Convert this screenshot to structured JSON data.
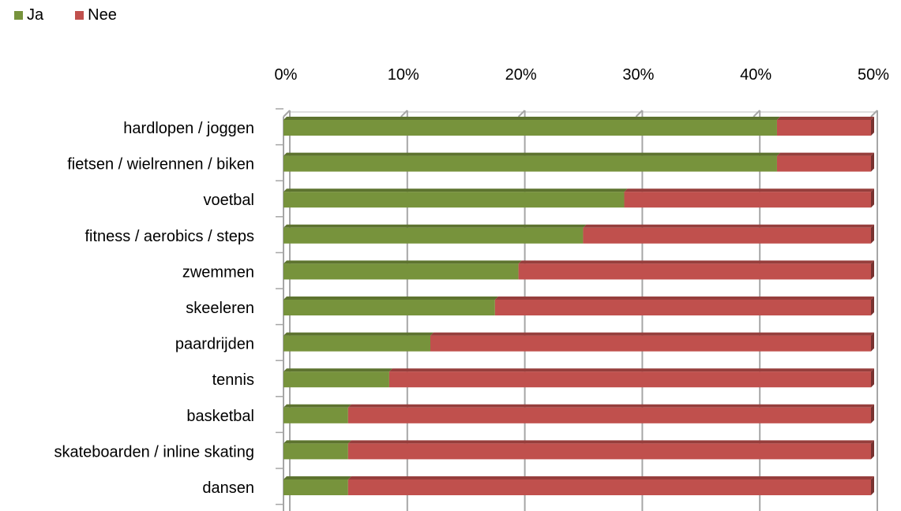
{
  "chart_data": {
    "type": "bar",
    "orientation": "horizontal",
    "stacked": true,
    "categories": [
      "hardlopen / joggen",
      "fietsen / wielrennen / biken",
      "voetbal",
      "fitness / aerobics / steps",
      "zwemmen",
      "skeeleren",
      "paardrijden",
      "tennis",
      "basketbal",
      "skateboarden / inline skating",
      "dansen"
    ],
    "series": [
      {
        "name": "Ja",
        "color": "#77933C",
        "values": [
          42,
          42,
          29,
          25.5,
          20,
          18,
          12.5,
          9,
          5.5,
          5.5,
          5.5
        ]
      },
      {
        "name": "Nee",
        "color": "#C0504D",
        "values": [
          8,
          8,
          21,
          24.5,
          30,
          32,
          37.5,
          41,
          44.5,
          44.5,
          44.5
        ]
      }
    ],
    "xlim": [
      0,
      50
    ],
    "xticks": [
      "0%",
      "10%",
      "20%",
      "30%",
      "40%",
      "50%"
    ],
    "grid": true,
    "legend_position": "top-left"
  }
}
